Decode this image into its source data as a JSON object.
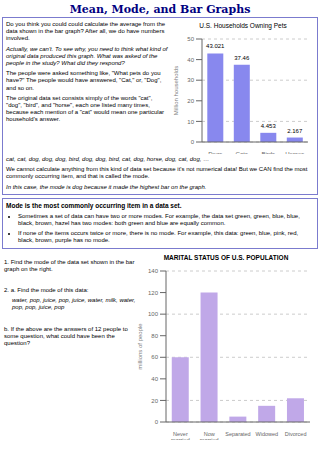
{
  "title": "Mean, Mode, and Bar Graphs",
  "annotations": [
    "Do you think you could could calculate the average from the data shown in the bar graph?  After all, we do have numbers involved.",
    "Actually, we can't.  To see why, you need to think what kind of original data produced this graph. What was asked of the people in the study? What did they respond?",
    "The people were asked something like, \"What pets do you have?\" The people would have answered, \"Cat,\" or, \"Dog\", and so on.",
    "The original data set consists simply of the words \"cat\", \"dog\", \"bird\", and \"horse\", each one listed many times, because each mention of a \"cat\" would mean one particular household's answer.",
    "cat, cat, dog, dog, dog, bird, dog, dog, bird, cat, dog, horse, dog, cat, dog, …",
    "We cannot calculate anything from this kind of data set because it's not numerical data! But we CAN find the most commonly occurring item, and that is called the mode.",
    "In this case, the mode is dog because it made the highest bar on the graph.",
    "Mode is the most commonly occurring item in a data set.",
    "Sometimes a set of data can have two or more modes. For example, the data set green, green, blue, blue, black, brown, hazel has two modes: both green and blue are equally common.",
    "If none of the items occurs twice or more, there is no mode. For example, this data: green, blue, pink, red, black, brown, purple has no mode.",
    "1.  Find the mode of the data set shown in the bar graph on the right.",
    "2.  a.  Find the mode of this data:",
    "water, pop, juice, pop, juice, water, milk, water, pop, pop, juice, pop",
    "b.  If the above are the answers of 12 people to some question, what could have been the question?"
  ],
  "chart_data": [
    {
      "type": "bar",
      "title": "U.S. Households Owning Pets",
      "categories": [
        "Dogs",
        "Cats",
        "Birds",
        "Horses"
      ],
      "values": [
        43.021,
        37.46,
        4.453,
        2.167
      ],
      "color": "#8888EE",
      "ylabel": "Million households",
      "ylim": [
        0,
        50
      ],
      "yticks": [
        0,
        10,
        20,
        30,
        40,
        50
      ],
      "grid": true,
      "data_labels": true
    },
    {
      "type": "bar",
      "title": "MARITAL STATUS OF U.S. POPULATION",
      "categories": [
        "Never\nmarried",
        "Now\nmarried",
        "Separated",
        "Widowed",
        "Divorced"
      ],
      "values": [
        60,
        120,
        5,
        15,
        22
      ],
      "color": "#C0A8E8",
      "ylabel": "millions of people",
      "ylim": [
        0,
        140
      ],
      "yticks": [
        0,
        20,
        40,
        60,
        80,
        100,
        120,
        140
      ],
      "grid": true
    }
  ]
}
